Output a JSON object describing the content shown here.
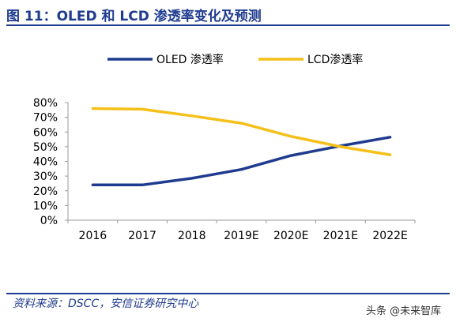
{
  "title": "图 11：OLED 和 LCD 渗透率变化及预测",
  "source": "资料来源：DSCC，安信证券研究中心",
  "watermark": "头条 @未来智库",
  "colors": {
    "heading": "#1f3b8f",
    "oled": "#1f3b8f",
    "lcd": "#f5c01a",
    "axis": "#9a9a9a"
  },
  "chart_data": {
    "type": "line",
    "categories": [
      "2016",
      "2017",
      "2018",
      "2019E",
      "2020E",
      "2021E",
      "2022E"
    ],
    "series": [
      {
        "name": "OLED 渗透率",
        "values": [
          24,
          24,
          28.5,
          34.5,
          44,
          50.5,
          56.5
        ]
      },
      {
        "name": "LCD渗透率",
        "values": [
          76,
          75.5,
          71,
          66,
          57,
          50,
          44.5
        ]
      }
    ],
    "y_tick_labels": [
      "80%",
      "70%",
      "60%",
      "50%",
      "40%",
      "30%",
      "20%",
      "10%",
      "0%"
    ],
    "ylim": [
      0,
      80
    ],
    "legend_position": "top",
    "grid": false,
    "xlabel": "",
    "ylabel": ""
  }
}
